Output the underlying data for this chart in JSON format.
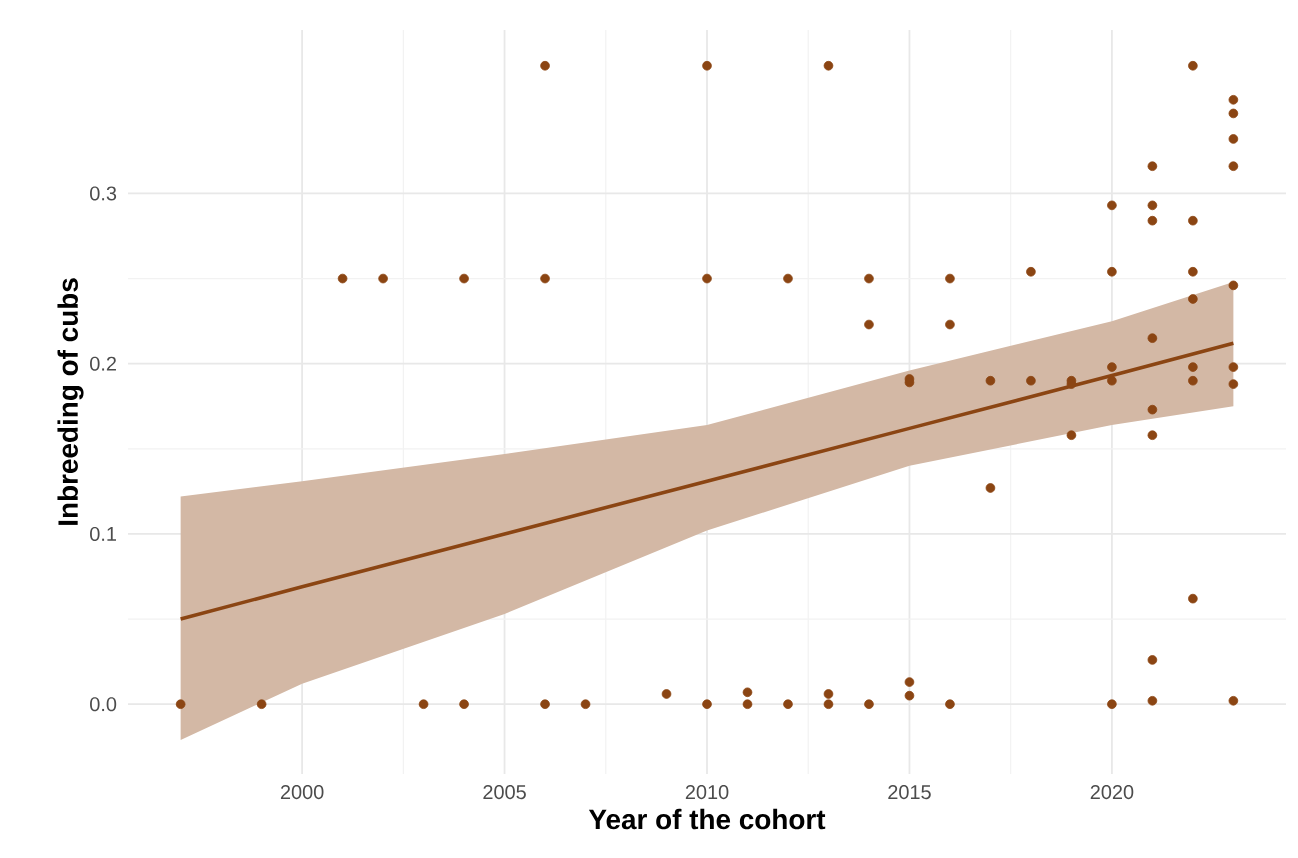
{
  "chart_data": {
    "type": "scatter",
    "xlabel": "Year of the cohort",
    "ylabel": "Inbreeding of cubs",
    "xlim": [
      1995.7,
      2024.3
    ],
    "ylim": [
      -0.041,
      0.396
    ],
    "xticks": [
      2000,
      2005,
      2010,
      2015,
      2020
    ],
    "yticks": [
      {
        "value": 0,
        "label": "0.0"
      },
      {
        "value": 0.1,
        "label": "0.1"
      },
      {
        "value": 0.2,
        "label": "0.2"
      },
      {
        "value": 0.3,
        "label": "0.3"
      }
    ],
    "grid": true,
    "marker": "circle",
    "series": [
      {
        "type": "line",
        "color": "#8b4513",
        "marker": "none",
        "x": [
          1997,
          2000,
          2005,
          2010,
          2015,
          2020,
          2023
        ],
        "values": [
          0.05,
          0.069,
          0.1,
          0.131,
          0.162,
          0.193,
          0.212
        ],
        "lower": [
          -0.021,
          0.012,
          0.053,
          0.102,
          0.14,
          0.164,
          0.175
        ],
        "upper": [
          0.122,
          0.131,
          0.147,
          0.164,
          0.196,
          0.225,
          0.248
        ]
      },
      {
        "type": "scatter",
        "color": "#8b4513",
        "x": [
          1997,
          1999,
          2001,
          2002,
          2003,
          2004,
          2004,
          2006,
          2006,
          2006,
          2007,
          2009,
          2010,
          2010,
          2010,
          2011,
          2011,
          2012,
          2012,
          2013,
          2013,
          2013,
          2014,
          2014,
          2014,
          2015,
          2015,
          2015,
          2015,
          2016,
          2016,
          2016,
          2017,
          2017,
          2018,
          2018,
          2019,
          2019,
          2019,
          2020,
          2020,
          2020,
          2020,
          2020,
          2021,
          2021,
          2021,
          2021,
          2021,
          2021,
          2021,
          2021,
          2022,
          2022,
          2022,
          2022,
          2022,
          2022,
          2022,
          2023,
          2023,
          2023,
          2023,
          2023,
          2023,
          2023,
          2023
        ],
        "values": [
          0,
          0,
          0.25,
          0.25,
          0,
          0.25,
          0,
          0.375,
          0.25,
          0,
          0,
          0.006,
          0.375,
          0.25,
          0,
          0.007,
          0,
          0.25,
          0,
          0.375,
          0.006,
          0,
          0.25,
          0.223,
          0,
          0.191,
          0.189,
          0.013,
          0.005,
          0.25,
          0.223,
          0,
          0.19,
          0.127,
          0.254,
          0.19,
          0.19,
          0.188,
          0.158,
          0.293,
          0.254,
          0.198,
          0.19,
          0,
          0.316,
          0.293,
          0.284,
          0.215,
          0.173,
          0.158,
          0.026,
          0.002,
          0.375,
          0.284,
          0.254,
          0.238,
          0.198,
          0.19,
          0.062,
          0.355,
          0.347,
          0.332,
          0.316,
          0.246,
          0.198,
          0.188,
          0.002
        ]
      }
    ]
  }
}
